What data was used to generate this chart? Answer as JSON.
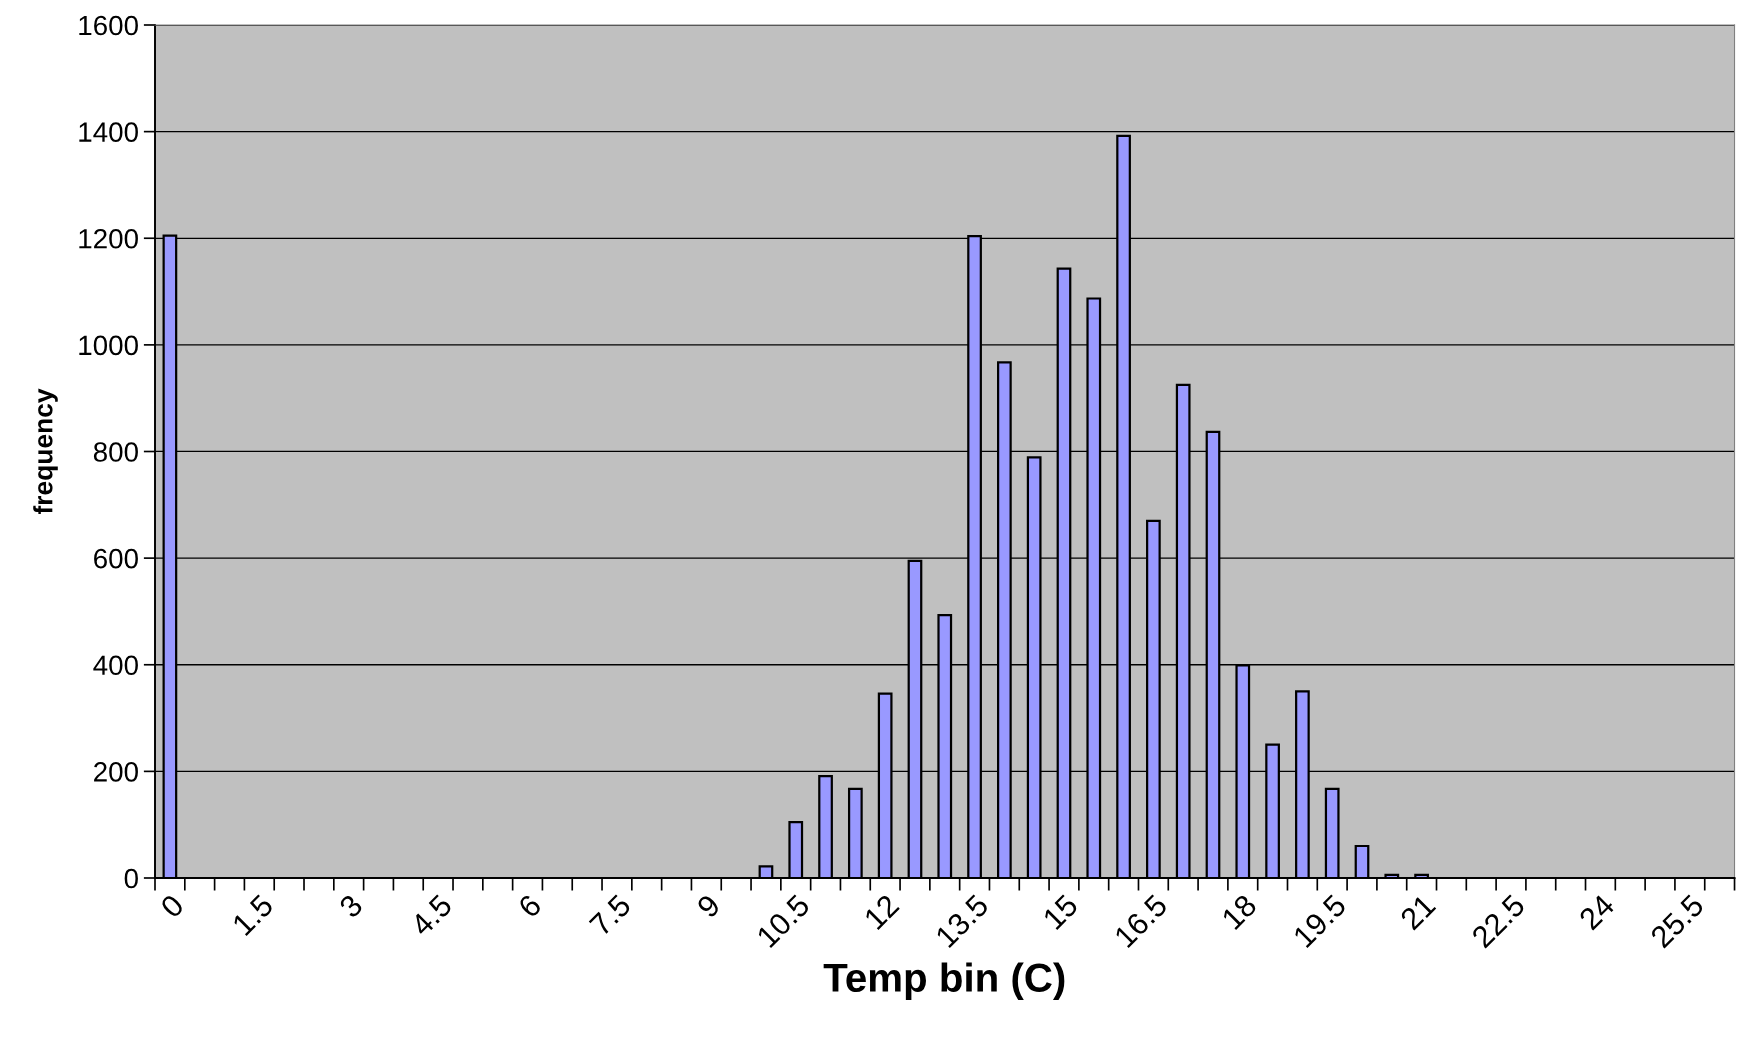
{
  "chart_data": {
    "type": "bar",
    "xlabel": "Temp bin (C)",
    "ylabel": "frequency",
    "categories": [
      "0",
      null,
      null,
      "1.5",
      null,
      null,
      "3",
      null,
      null,
      "4.5",
      null,
      null,
      "6",
      null,
      null,
      "7.5",
      null,
      null,
      "9",
      null,
      null,
      "10.5",
      null,
      null,
      "12",
      null,
      null,
      "13.5",
      null,
      null,
      "15",
      null,
      null,
      "16.5",
      null,
      null,
      "18",
      null,
      null,
      "19.5",
      null,
      null,
      "21",
      null,
      null,
      "22.5",
      null,
      null,
      "24",
      null,
      null,
      "25.5",
      null
    ],
    "values": [
      1205,
      0,
      0,
      0,
      0,
      0,
      0,
      0,
      0,
      0,
      0,
      0,
      0,
      0,
      0,
      0,
      0,
      0,
      0,
      0,
      22,
      105,
      191,
      167,
      346,
      595,
      493,
      1204,
      967,
      789,
      1143,
      1087,
      1392,
      670,
      925,
      837,
      399,
      250,
      350,
      167,
      60,
      6,
      6,
      0,
      0,
      0,
      0,
      0,
      0,
      0,
      0,
      0,
      0
    ],
    "color": "#9999ff",
    "ylim": [
      0,
      1600
    ],
    "yticks": [
      0,
      200,
      400,
      600,
      800,
      1000,
      1200,
      1400,
      1600
    ],
    "grid": "y"
  }
}
